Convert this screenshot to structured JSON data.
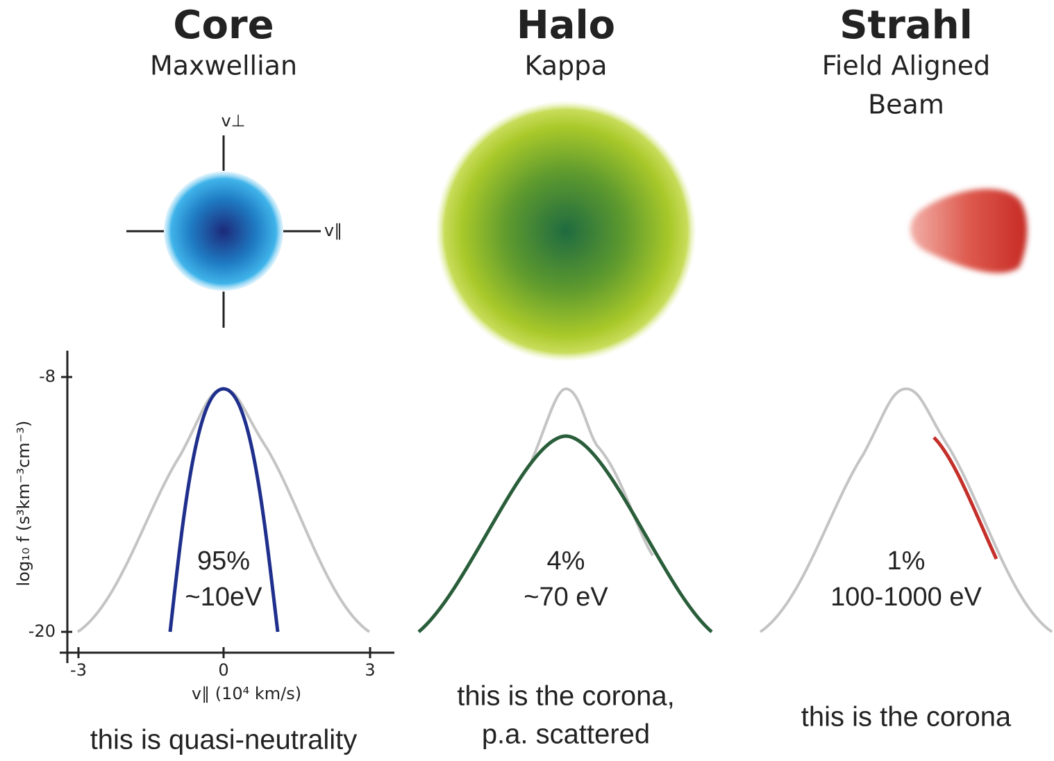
{
  "panels": [
    {
      "title": "Core",
      "subtitle": [
        "Maxwellian"
      ],
      "percent": "95%",
      "energy": "~10eV",
      "caption": [
        "this is quasi-neutrality"
      ]
    },
    {
      "title": "Halo",
      "subtitle": [
        "Kappa"
      ],
      "percent": "4%",
      "energy": "~70 eV",
      "caption": [
        "this is the corona,",
        "p.a. scattered"
      ]
    },
    {
      "title": "Strahl",
      "subtitle": [
        "Field Aligned",
        "Beam"
      ],
      "percent": "1%",
      "energy": "100-1000 eV",
      "caption": [
        "this is the corona"
      ]
    }
  ],
  "axes": {
    "v_perp": "v⊥",
    "v_par": "v∥",
    "y_label": "log₁₀ f (s³km⁻³cm⁻³)",
    "x_label": "v∥ (10⁴ km/s)",
    "yticks": [
      -8,
      -20
    ],
    "xticks": [
      -3,
      0,
      3
    ]
  }
}
